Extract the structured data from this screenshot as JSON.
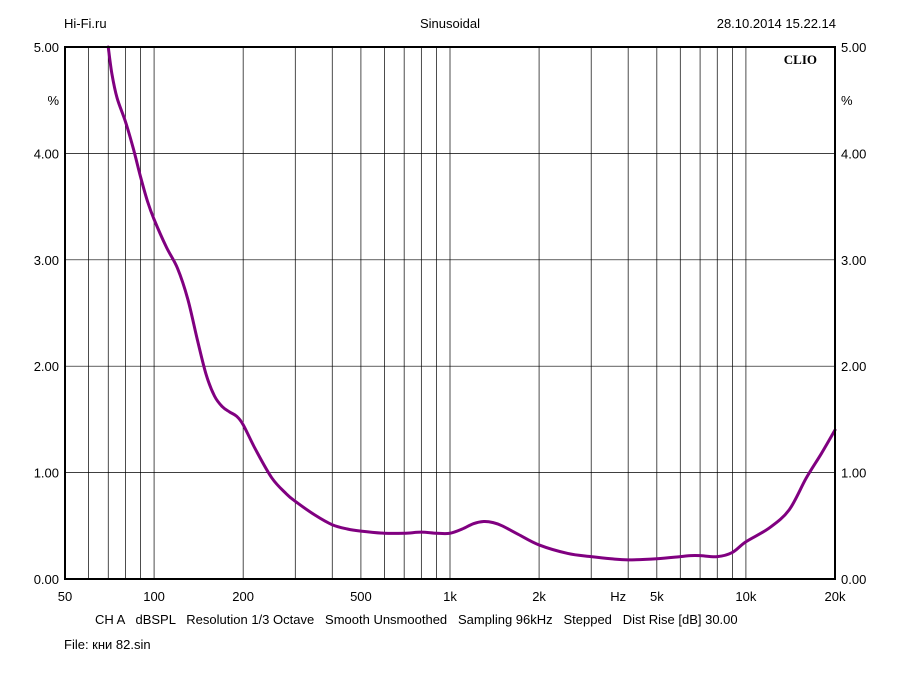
{
  "header": {
    "left": "Hi-Fi.ru",
    "center": "Sinusoidal",
    "right": "28.10.2014 15.22.14"
  },
  "brand": "CLIO",
  "footer": {
    "settings": "CH A   dBSPL   Resolution 1/3 Octave   Smooth Unsmoothed   Sampling 96kHz   Stepped   Dist Rise [dB] 30.00",
    "file": "File: кни 82.sin"
  },
  "chart_data": {
    "type": "line",
    "x_scale": "log",
    "xlim": [
      50,
      20000
    ],
    "ylim": [
      0,
      5
    ],
    "y_unit": "%",
    "x_unit": "Hz",
    "x_tick_labels": [
      {
        "value": 50,
        "label": "50"
      },
      {
        "value": 100,
        "label": "100"
      },
      {
        "value": 200,
        "label": "200"
      },
      {
        "value": 500,
        "label": "500"
      },
      {
        "value": 1000,
        "label": "1k"
      },
      {
        "value": 2000,
        "label": "2k"
      },
      {
        "value": 5000,
        "label": "5k"
      },
      {
        "value": 10000,
        "label": "10k"
      },
      {
        "value": 20000,
        "label": "20k"
      }
    ],
    "y_tick_labels": [
      {
        "value": 0,
        "label": "0.00"
      },
      {
        "value": 1,
        "label": "1.00"
      },
      {
        "value": 2,
        "label": "2.00"
      },
      {
        "value": 3,
        "label": "3.00"
      },
      {
        "value": 4,
        "label": "4.00"
      },
      {
        "value": 5,
        "label": "5.00"
      }
    ],
    "x_gridlines": [
      50,
      60,
      70,
      80,
      90,
      100,
      200,
      300,
      400,
      500,
      600,
      700,
      800,
      900,
      1000,
      2000,
      3000,
      4000,
      5000,
      6000,
      7000,
      8000,
      9000,
      10000,
      20000
    ],
    "y_gridlines": [
      0,
      1,
      2,
      3,
      4,
      5
    ],
    "grid": true,
    "line_color": "#800080",
    "series": [
      {
        "x": [
          70,
          72,
          75,
          80,
          85,
          90,
          95,
          100,
          110,
          120,
          130,
          140,
          150,
          160,
          170,
          180,
          190,
          200,
          220,
          250,
          280,
          300,
          350,
          400,
          450,
          500,
          600,
          700,
          800,
          900,
          1000,
          1100,
          1200,
          1300,
          1400,
          1500,
          1700,
          2000,
          2500,
          3000,
          3500,
          4000,
          5000,
          6000,
          6500,
          7000,
          8000,
          9000,
          10000,
          12000,
          14000,
          16000,
          18000,
          20000
        ],
        "y": [
          5.0,
          4.75,
          4.52,
          4.3,
          4.05,
          3.78,
          3.55,
          3.38,
          3.12,
          2.92,
          2.63,
          2.25,
          1.92,
          1.72,
          1.62,
          1.57,
          1.53,
          1.45,
          1.22,
          0.95,
          0.8,
          0.73,
          0.6,
          0.51,
          0.47,
          0.45,
          0.43,
          0.43,
          0.44,
          0.43,
          0.43,
          0.47,
          0.52,
          0.54,
          0.53,
          0.5,
          0.42,
          0.32,
          0.24,
          0.21,
          0.19,
          0.18,
          0.19,
          0.21,
          0.22,
          0.22,
          0.21,
          0.25,
          0.35,
          0.48,
          0.65,
          0.95,
          1.18,
          1.4
        ]
      }
    ]
  }
}
